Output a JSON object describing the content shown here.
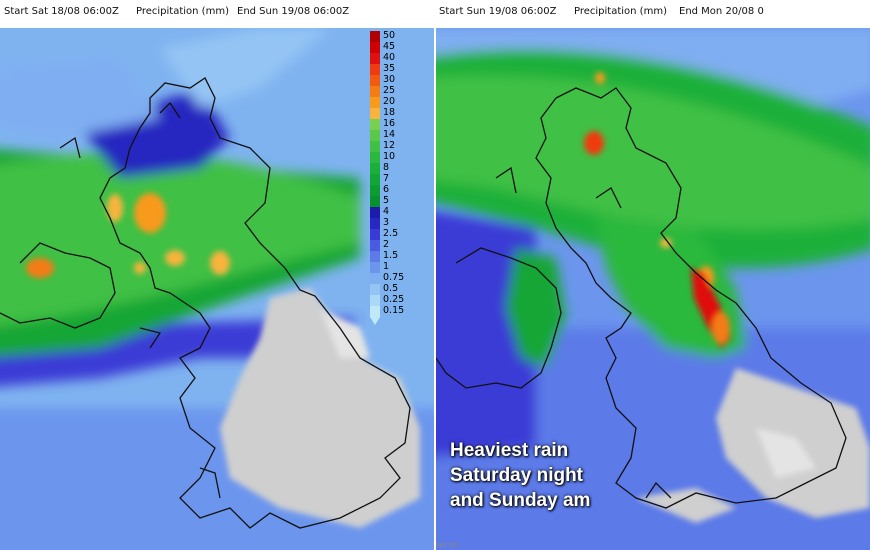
{
  "panels": {
    "left": {
      "start": "Start Sat 18/08 06:00Z",
      "variable": "Precipitation (mm)",
      "end": "End Sun 19/08 06:00Z"
    },
    "right": {
      "start": "Start Sun 19/08 06:00Z",
      "variable": "Precipitation (mm)",
      "end": "End Mon 20/08 0"
    }
  },
  "legend": {
    "levels": [
      {
        "label": "50",
        "color": "#b00000"
      },
      {
        "label": "45",
        "color": "#d00000"
      },
      {
        "label": "40",
        "color": "#e01010"
      },
      {
        "label": "35",
        "color": "#f03a10"
      },
      {
        "label": "30",
        "color": "#f25a10"
      },
      {
        "label": "25",
        "color": "#f47c12"
      },
      {
        "label": "20",
        "color": "#f89a1a"
      },
      {
        "label": "18",
        "color": "#f8b43c"
      },
      {
        "label": "16",
        "color": "#78d050"
      },
      {
        "label": "14",
        "color": "#5cc84a"
      },
      {
        "label": "12",
        "color": "#40c044"
      },
      {
        "label": "10",
        "color": "#2cb83e"
      },
      {
        "label": "8",
        "color": "#1ab03a"
      },
      {
        "label": "7",
        "color": "#12a636"
      },
      {
        "label": "6",
        "color": "#0c9c32"
      },
      {
        "label": "5",
        "color": "#08922e"
      },
      {
        "label": "4",
        "color": "#1c1ca8"
      },
      {
        "label": "3",
        "color": "#2828c0"
      },
      {
        "label": "2.5",
        "color": "#3a3ad6"
      },
      {
        "label": "2",
        "color": "#4c5ae2"
      },
      {
        "label": "1.5",
        "color": "#5c7ae8"
      },
      {
        "label": "1",
        "color": "#6c96ee"
      },
      {
        "label": "0.75",
        "color": "#80aef2"
      },
      {
        "label": "0.5",
        "color": "#94c4f4"
      },
      {
        "label": "0.25",
        "color": "#aad8f6"
      },
      {
        "label": "0.15",
        "color": "#bfe9f7"
      }
    ]
  },
  "annotation": {
    "lines": [
      "Heaviest rain",
      "Saturday night",
      "and Sunday am"
    ]
  },
  "credit": "Met MD",
  "colors": {
    "land_dry": "#cfcfcf",
    "sea": "#ffffff",
    "coast": "#111111"
  }
}
